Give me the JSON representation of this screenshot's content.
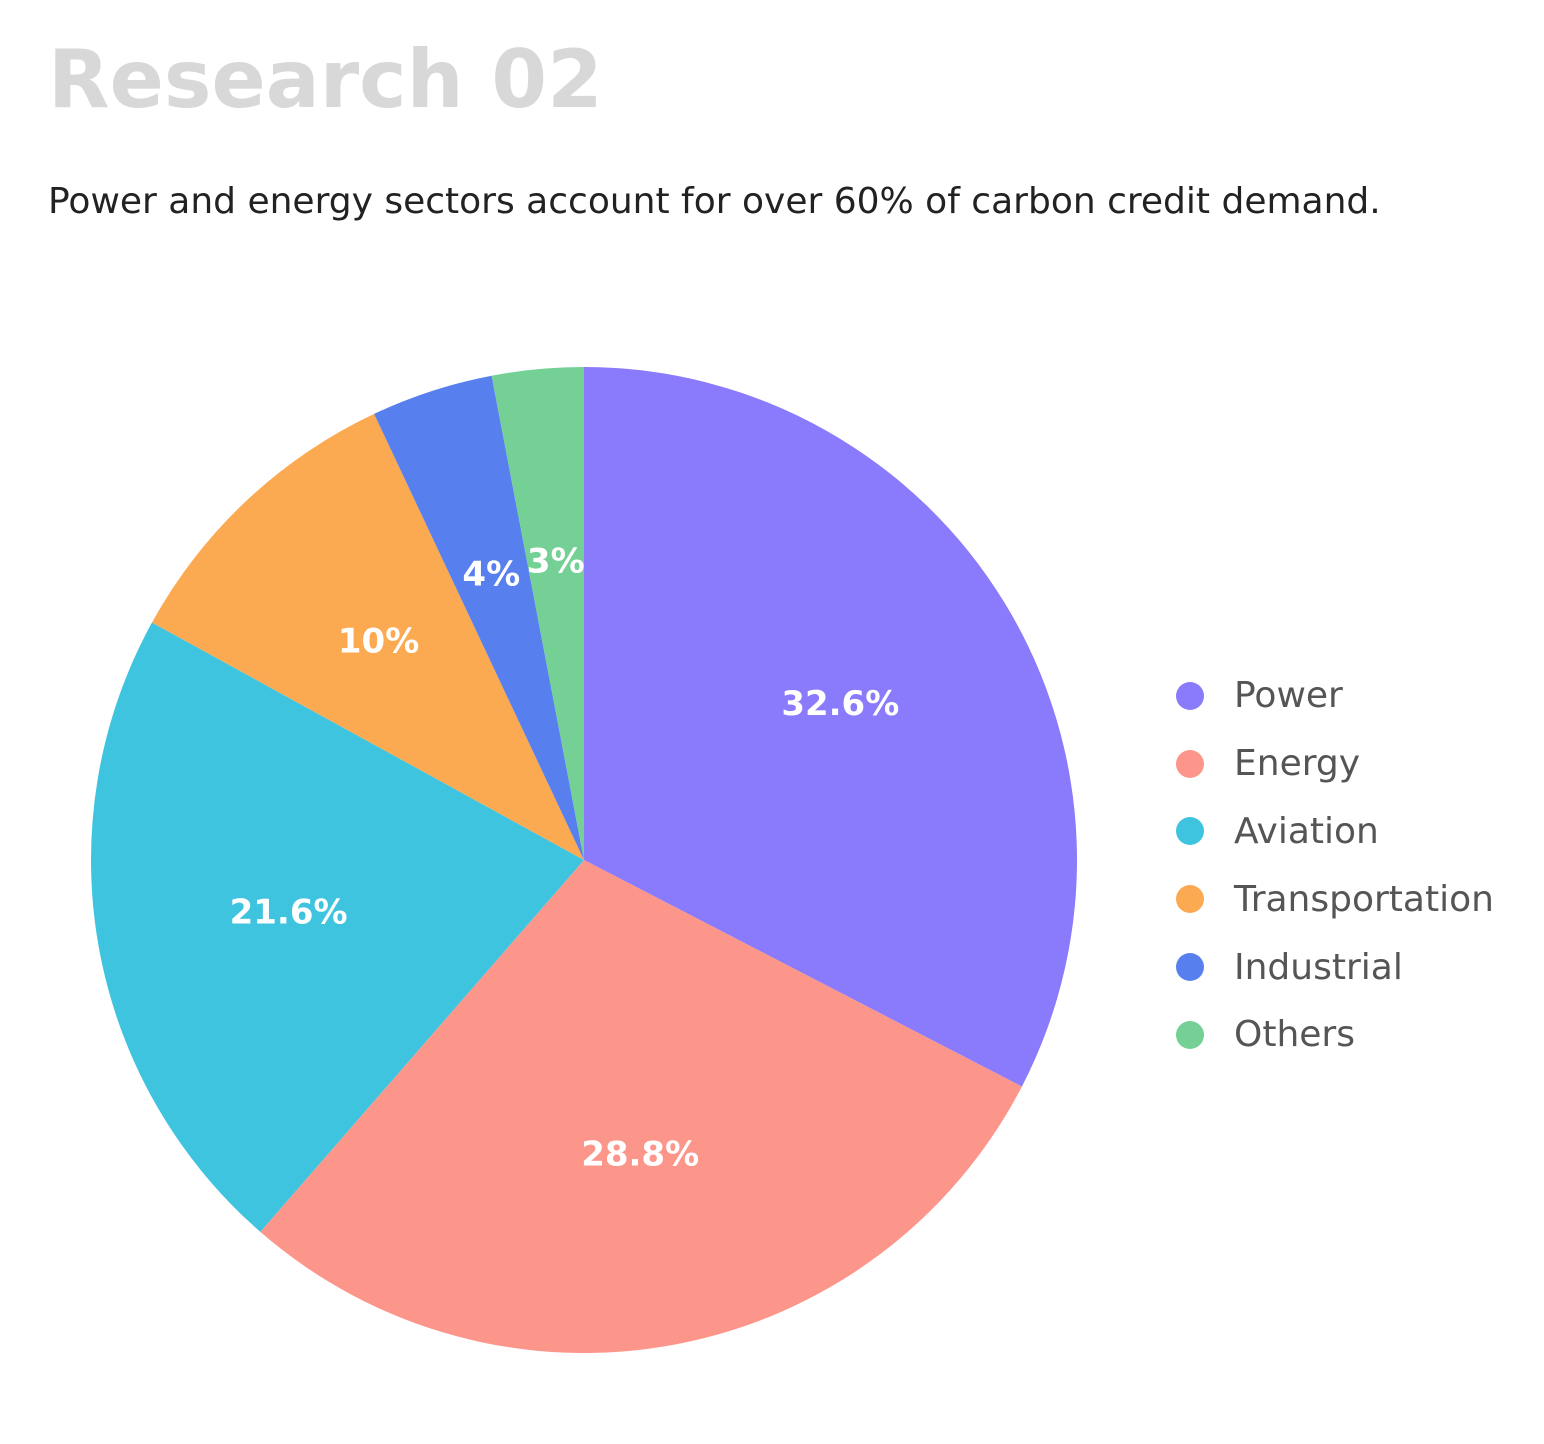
{
  "page": {
    "title": "Research 02",
    "subtitle": "Power and energy sectors account for over 60% of carbon credit demand."
  },
  "chart_data": {
    "type": "pie",
    "title": "",
    "categories": [
      "Power",
      "Energy",
      "Aviation",
      "Transportation",
      "Industrial",
      "Others"
    ],
    "values": [
      32.6,
      28.8,
      21.6,
      10,
      4,
      3
    ],
    "value_labels": [
      "32.6%",
      "28.8%",
      "21.6%",
      "10%",
      "4%",
      "3%"
    ],
    "colors": [
      "#8a7afc",
      "#fc968b",
      "#3fc4df",
      "#fcaa52",
      "#587fee",
      "#74d095"
    ],
    "start_angle": "12 o'clock",
    "direction": "clockwise",
    "legend_position": "right"
  }
}
